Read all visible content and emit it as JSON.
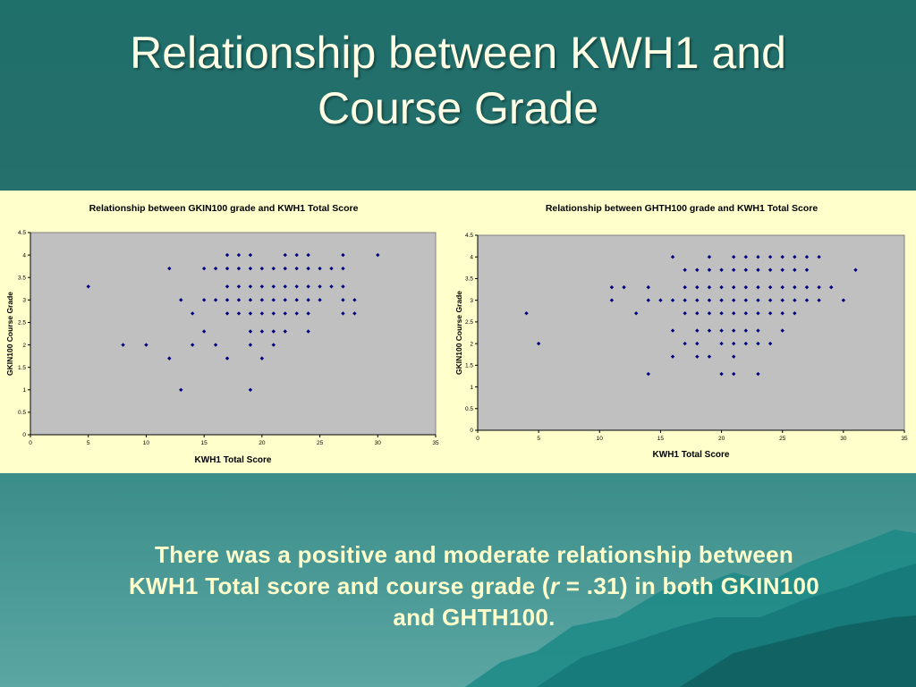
{
  "slide": {
    "title_line1": "Relationship between KWH1 and",
    "title_line2": "Course Grade",
    "caption_part1": "There was a positive and moderate relationship between KWH1 Total score and course grade (",
    "caption_r": "r",
    "caption_part2": " = .31) in both GKIN100 and GHTH100."
  },
  "colors": {
    "background": "#236f6c",
    "band": "#ffffcc",
    "plot_area": "#c0c0c0",
    "marker": "#000080",
    "text_light": "#ffffcc"
  },
  "chart_data": [
    {
      "type": "scatter",
      "title": "Relationship between GKIN100 grade and KWH1 Total Score",
      "xlabel": "KWH1 Total Score",
      "ylabel": "GKIN100 Course Grade",
      "xlim": [
        0,
        35
      ],
      "ylim": [
        0,
        4.5
      ],
      "xticks": [
        0,
        5,
        10,
        15,
        20,
        25,
        30,
        35
      ],
      "yticks": [
        0,
        0.5,
        1,
        1.5,
        2,
        2.5,
        3,
        3.5,
        4,
        4.5
      ],
      "grid": false,
      "points": [
        [
          5,
          3.3
        ],
        [
          8,
          2
        ],
        [
          10,
          2
        ],
        [
          12,
          3.7
        ],
        [
          12,
          1.7
        ],
        [
          13,
          3
        ],
        [
          13,
          1
        ],
        [
          14,
          2.7
        ],
        [
          14,
          2
        ],
        [
          15,
          3.7
        ],
        [
          15,
          3
        ],
        [
          15,
          2.3
        ],
        [
          16,
          3.7
        ],
        [
          16,
          3
        ],
        [
          16,
          2
        ],
        [
          17,
          4
        ],
        [
          17,
          3.7
        ],
        [
          17,
          3.3
        ],
        [
          17,
          3
        ],
        [
          17,
          2.7
        ],
        [
          17,
          1.7
        ],
        [
          18,
          4
        ],
        [
          18,
          3.7
        ],
        [
          18,
          3.3
        ],
        [
          18,
          3
        ],
        [
          18,
          2.7
        ],
        [
          19,
          4
        ],
        [
          19,
          3.7
        ],
        [
          19,
          3.3
        ],
        [
          19,
          3
        ],
        [
          19,
          2.7
        ],
        [
          19,
          2.3
        ],
        [
          19,
          2
        ],
        [
          19,
          1
        ],
        [
          20,
          3.7
        ],
        [
          20,
          3.3
        ],
        [
          20,
          3
        ],
        [
          20,
          2.7
        ],
        [
          20,
          2.3
        ],
        [
          20,
          1.7
        ],
        [
          21,
          3.7
        ],
        [
          21,
          3.3
        ],
        [
          21,
          3
        ],
        [
          21,
          2.7
        ],
        [
          21,
          2.3
        ],
        [
          21,
          2
        ],
        [
          22,
          4
        ],
        [
          22,
          3.7
        ],
        [
          22,
          3.3
        ],
        [
          22,
          3
        ],
        [
          22,
          2.7
        ],
        [
          22,
          2.3
        ],
        [
          23,
          4
        ],
        [
          23,
          3.7
        ],
        [
          23,
          3.3
        ],
        [
          23,
          3
        ],
        [
          23,
          2.7
        ],
        [
          24,
          4
        ],
        [
          24,
          3.7
        ],
        [
          24,
          3.3
        ],
        [
          24,
          3
        ],
        [
          24,
          2.7
        ],
        [
          24,
          2.3
        ],
        [
          25,
          3.7
        ],
        [
          25,
          3.3
        ],
        [
          25,
          3
        ],
        [
          26,
          3.7
        ],
        [
          26,
          3.3
        ],
        [
          27,
          4
        ],
        [
          27,
          3.7
        ],
        [
          27,
          3.3
        ],
        [
          27,
          3
        ],
        [
          27,
          2.7
        ],
        [
          28,
          3
        ],
        [
          28,
          2.7
        ],
        [
          30,
          4
        ]
      ]
    },
    {
      "type": "scatter",
      "title": "Relationship between GHTH100 grade and KWH1 Total Score",
      "xlabel": "KWH1 Total Score",
      "ylabel": "GKIN100 Course Grade",
      "xlim": [
        0,
        35
      ],
      "ylim": [
        0,
        4.5
      ],
      "xticks": [
        0,
        5,
        10,
        15,
        20,
        25,
        30,
        35
      ],
      "yticks": [
        0,
        0.5,
        1,
        1.5,
        2,
        2.5,
        3,
        3.5,
        4,
        4.5
      ],
      "grid": false,
      "points": [
        [
          4,
          2.7
        ],
        [
          5,
          2
        ],
        [
          11,
          3.3
        ],
        [
          11,
          3
        ],
        [
          12,
          3.3
        ],
        [
          13,
          2.7
        ],
        [
          14,
          3.3
        ],
        [
          14,
          3
        ],
        [
          14,
          1.3
        ],
        [
          15,
          3
        ],
        [
          16,
          4
        ],
        [
          16,
          3
        ],
        [
          16,
          2.3
        ],
        [
          16,
          1.7
        ],
        [
          17,
          3.7
        ],
        [
          17,
          3.3
        ],
        [
          17,
          3
        ],
        [
          17,
          2.7
        ],
        [
          17,
          2
        ],
        [
          18,
          3.7
        ],
        [
          18,
          3.3
        ],
        [
          18,
          3
        ],
        [
          18,
          2.7
        ],
        [
          18,
          2.3
        ],
        [
          18,
          2
        ],
        [
          18,
          1.7
        ],
        [
          19,
          4
        ],
        [
          19,
          3.7
        ],
        [
          19,
          3.3
        ],
        [
          19,
          3
        ],
        [
          19,
          2.7
        ],
        [
          19,
          2.3
        ],
        [
          19,
          1.7
        ],
        [
          20,
          3.7
        ],
        [
          20,
          3.3
        ],
        [
          20,
          3
        ],
        [
          20,
          2.7
        ],
        [
          20,
          2.3
        ],
        [
          20,
          2
        ],
        [
          20,
          1.3
        ],
        [
          21,
          4
        ],
        [
          21,
          3.7
        ],
        [
          21,
          3.3
        ],
        [
          21,
          3
        ],
        [
          21,
          2.7
        ],
        [
          21,
          2.3
        ],
        [
          21,
          2
        ],
        [
          21,
          1.7
        ],
        [
          21,
          1.3
        ],
        [
          22,
          4
        ],
        [
          22,
          3.7
        ],
        [
          22,
          3.3
        ],
        [
          22,
          3
        ],
        [
          22,
          2.7
        ],
        [
          22,
          2.3
        ],
        [
          22,
          2
        ],
        [
          23,
          4
        ],
        [
          23,
          3.7
        ],
        [
          23,
          3.3
        ],
        [
          23,
          3
        ],
        [
          23,
          2.7
        ],
        [
          23,
          2.3
        ],
        [
          23,
          2
        ],
        [
          23,
          1.3
        ],
        [
          24,
          4
        ],
        [
          24,
          3.7
        ],
        [
          24,
          3.3
        ],
        [
          24,
          3
        ],
        [
          24,
          2.7
        ],
        [
          24,
          2
        ],
        [
          25,
          4
        ],
        [
          25,
          3.7
        ],
        [
          25,
          3.3
        ],
        [
          25,
          3
        ],
        [
          25,
          2.7
        ],
        [
          25,
          2.3
        ],
        [
          26,
          4
        ],
        [
          26,
          3.7
        ],
        [
          26,
          3.3
        ],
        [
          26,
          3
        ],
        [
          26,
          2.7
        ],
        [
          27,
          4
        ],
        [
          27,
          3.7
        ],
        [
          27,
          3.3
        ],
        [
          27,
          3
        ],
        [
          28,
          4
        ],
        [
          28,
          3.3
        ],
        [
          28,
          3
        ],
        [
          29,
          3.3
        ],
        [
          30,
          3
        ],
        [
          31,
          3.7
        ]
      ]
    }
  ]
}
